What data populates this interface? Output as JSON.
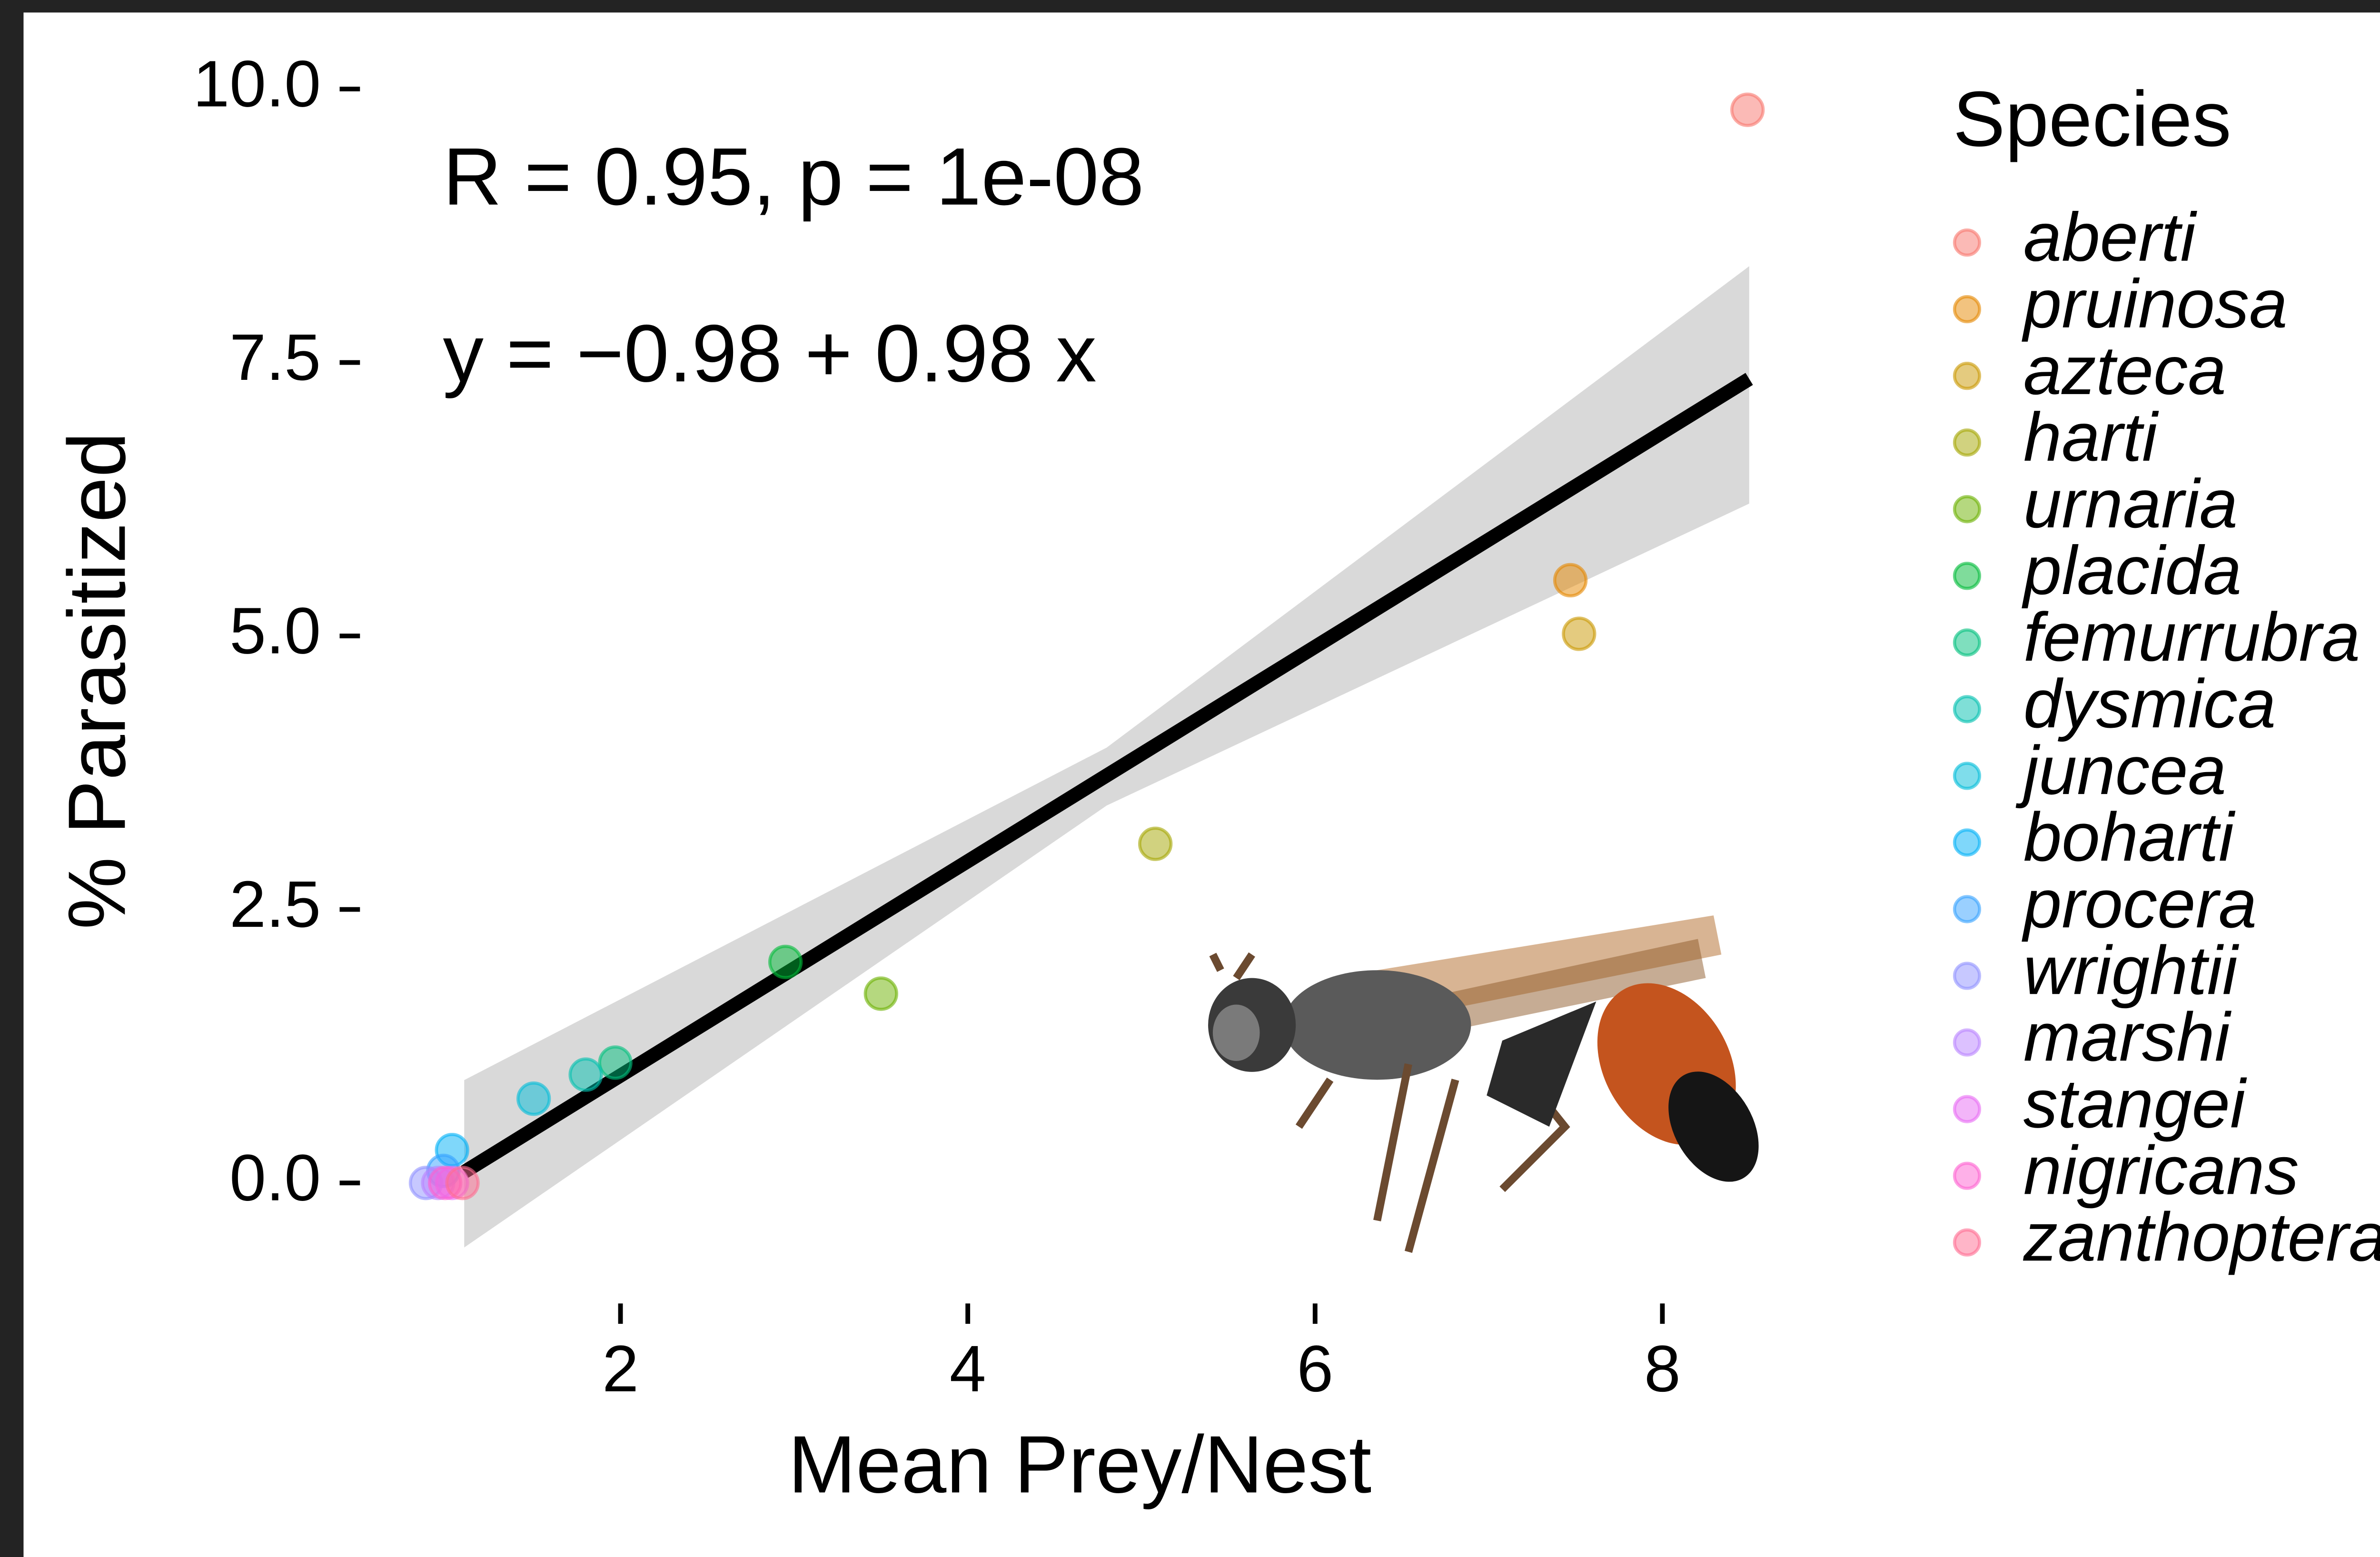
{
  "chart_data": {
    "type": "scatter",
    "x_label": "Mean Prey/Nest",
    "y_label": "% Parasitized",
    "legend_title": "Species",
    "legend_position": "right",
    "grid": false,
    "annotations": [
      "R = 0.95, p = 1e-08",
      "y = −0.98 + 0.98 x"
    ],
    "xlim": [
      0.68,
      8.61
    ],
    "ylim": [
      -0.63,
      10.17
    ],
    "xticks": [
      2,
      4,
      6,
      8
    ],
    "yticks": [
      {
        "value": 0,
        "label": "0.0"
      },
      {
        "value": 2.5,
        "label": "2.5"
      },
      {
        "value": 5,
        "label": "5.0"
      },
      {
        "value": 7.5,
        "label": "7.5"
      },
      {
        "value": 10,
        "label": "10.0"
      }
    ],
    "fit_line": {
      "color": "#000000",
      "x": [
        1.1,
        8.5
      ],
      "y": [
        0.1,
        7.35
      ]
    },
    "confidence_band": {
      "color": "#d9d9d9",
      "x": [
        1.1,
        4.8,
        8.5
      ],
      "lower": [
        -0.59,
        3.45,
        6.21
      ],
      "upper": [
        0.94,
        3.98,
        8.38
      ]
    },
    "series": [
      {
        "name": "aberti",
        "color": "#F8766D",
        "x": [
          8.49
        ],
        "values": [
          9.81
        ]
      },
      {
        "name": "pruinosa",
        "color": "#E58700",
        "x": [
          7.47
        ],
        "values": [
          5.51
        ]
      },
      {
        "name": "azteca",
        "color": "#C99800",
        "x": [
          7.52
        ],
        "values": [
          5.02
        ]
      },
      {
        "name": "harti",
        "color": "#A3A500",
        "x": [
          5.08
        ],
        "values": [
          3.1
        ]
      },
      {
        "name": "urnaria",
        "color": "#6BB100",
        "x": [
          3.5
        ],
        "values": [
          1.73
        ]
      },
      {
        "name": "placida",
        "color": "#00BA38",
        "x": [
          2.95
        ],
        "values": [
          2.02
        ]
      },
      {
        "name": "femurrubra",
        "color": "#00BF7D",
        "x": [
          1.97
        ],
        "values": [
          1.1
        ]
      },
      {
        "name": "dysmica",
        "color": "#00C0AF",
        "x": [
          1.8
        ],
        "values": [
          0.99
        ]
      },
      {
        "name": "juncea",
        "color": "#00BCD8",
        "x": [
          1.5
        ],
        "values": [
          0.77
        ]
      },
      {
        "name": "boharti",
        "color": "#00B0F6",
        "x": [
          1.03
        ],
        "values": [
          0.3
        ]
      },
      {
        "name": "procera",
        "color": "#35A2FF",
        "x": [
          0.98
        ],
        "values": [
          0.11
        ]
      },
      {
        "name": "wrightii",
        "color": "#8F91FF",
        "x": [
          0.88
        ],
        "values": [
          0
        ]
      },
      {
        "name": "marshi",
        "color": "#B983FF",
        "x": [
          0.95
        ],
        "values": [
          0
        ]
      },
      {
        "name": "stangei",
        "color": "#E76BF3",
        "x": [
          1.03
        ],
        "values": [
          0
        ]
      },
      {
        "name": "nigricans",
        "color": "#FD61D1",
        "x": [
          0.99
        ],
        "values": [
          0
        ]
      },
      {
        "name": "zanthoptera",
        "color": "#FF6C91",
        "x": [
          1.09
        ],
        "values": [
          0
        ]
      }
    ]
  }
}
